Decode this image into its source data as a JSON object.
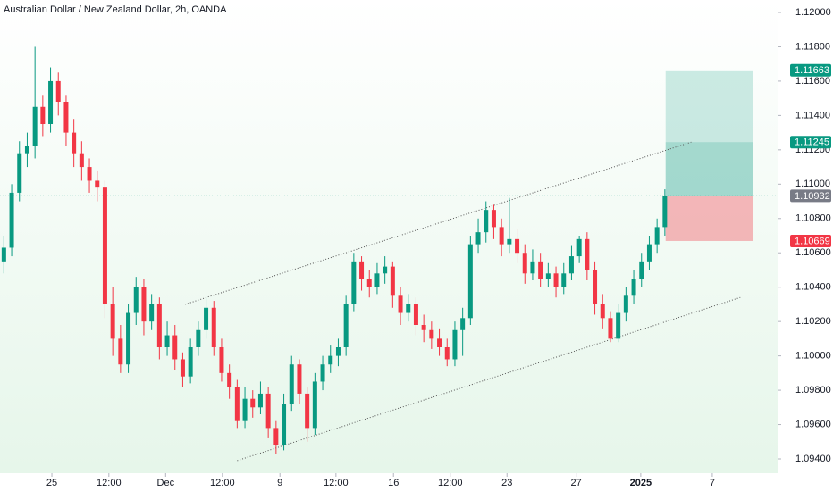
{
  "chart_data": {
    "type": "candlestick",
    "title": "Australian Dollar / New Zealand Dollar, 2h, OANDA",
    "up_color": "#089981",
    "down_color": "#f23645",
    "xlim": [
      0,
      100
    ],
    "ylim": [
      1.093168,
      1.120728
    ],
    "yticks": [
      {
        "value": 1.12,
        "label": "1.12000"
      },
      {
        "value": 1.118,
        "label": "1.11800"
      },
      {
        "value": 1.116,
        "label": "1.11600"
      },
      {
        "value": 1.114,
        "label": "1.11400"
      },
      {
        "value": 1.112,
        "label": "1.11200"
      },
      {
        "value": 1.11,
        "label": "1.11000"
      },
      {
        "value": 1.108,
        "label": "1.10800"
      },
      {
        "value": 1.106,
        "label": "1.10600"
      },
      {
        "value": 1.104,
        "label": "1.10400"
      },
      {
        "value": 1.102,
        "label": "1.10200"
      },
      {
        "value": 1.1,
        "label": "1.10000"
      },
      {
        "value": 1.098,
        "label": "1.09800"
      },
      {
        "value": 1.096,
        "label": "1.09600"
      },
      {
        "value": 1.094,
        "label": "1.09400"
      }
    ],
    "xticks": [
      {
        "value": 6.67,
        "label": "25"
      },
      {
        "value": 14.0,
        "label": "12:00"
      },
      {
        "value": 21.3,
        "label": "Dec"
      },
      {
        "value": 28.6,
        "label": "12:00"
      },
      {
        "value": 36.0,
        "label": "9"
      },
      {
        "value": 43.2,
        "label": "12:00"
      },
      {
        "value": 50.6,
        "label": "16"
      },
      {
        "value": 57.9,
        "label": "12:00"
      },
      {
        "value": 65.2,
        "label": "23"
      },
      {
        "value": 74.1,
        "label": "27"
      },
      {
        "value": 82.4,
        "label": "2025"
      },
      {
        "value": 91.6,
        "label": "7"
      }
    ],
    "ohlc": [
      [
        1.1055,
        1.107,
        1.1048,
        1.1063
      ],
      [
        1.1063,
        1.11,
        1.1058,
        1.1095
      ],
      [
        1.1095,
        1.1125,
        1.109,
        1.1118
      ],
      [
        1.1118,
        1.113,
        1.111,
        1.1122
      ],
      [
        1.1122,
        1.118,
        1.1115,
        1.1145
      ],
      [
        1.1145,
        1.1152,
        1.1128,
        1.1135
      ],
      [
        1.1135,
        1.1168,
        1.113,
        1.116
      ],
      [
        1.116,
        1.1165,
        1.114,
        1.1148
      ],
      [
        1.1148,
        1.1152,
        1.1122,
        1.113
      ],
      [
        1.113,
        1.1138,
        1.111,
        1.1118
      ],
      [
        1.1118,
        1.1125,
        1.1102,
        1.111
      ],
      [
        1.111,
        1.1115,
        1.1095,
        1.1102
      ],
      [
        1.1102,
        1.1108,
        1.109,
        1.1098
      ],
      [
        1.1098,
        1.1102,
        1.1022,
        1.103
      ],
      [
        1.103,
        1.104,
        1.1,
        1.101
      ],
      [
        1.101,
        1.1018,
        1.099,
        1.0995
      ],
      [
        1.0995,
        1.103,
        1.099,
        1.1025
      ],
      [
        1.1025,
        1.1046,
        1.1018,
        1.104
      ],
      [
        1.104,
        1.1045,
        1.1012,
        1.102
      ],
      [
        1.102,
        1.1036,
        1.1015,
        1.103
      ],
      [
        1.103,
        1.1034,
        1.0998,
        1.1005
      ],
      [
        1.1005,
        1.102,
        1.1,
        1.1012
      ],
      [
        1.1012,
        1.1018,
        1.0992,
        1.0998
      ],
      [
        1.0998,
        1.1002,
        1.0982,
        1.0988
      ],
      [
        1.0988,
        1.101,
        1.0984,
        1.1005
      ],
      [
        1.1005,
        1.102,
        1.1,
        1.1015
      ],
      [
        1.1015,
        1.1034,
        1.101,
        1.1028
      ],
      [
        1.1028,
        1.1032,
        1.1,
        1.1005
      ],
      [
        1.1005,
        1.101,
        1.0985,
        1.099
      ],
      [
        1.099,
        1.0995,
        1.0975,
        1.0982
      ],
      [
        1.0982,
        1.0986,
        1.0958,
        1.0962
      ],
      [
        1.0962,
        1.0982,
        1.0958,
        1.0975
      ],
      [
        1.0975,
        1.098,
        1.0964,
        1.097
      ],
      [
        1.097,
        1.0985,
        1.0966,
        1.0978
      ],
      [
        1.0978,
        1.0982,
        1.0952,
        1.0958
      ],
      [
        1.0958,
        1.0962,
        1.0943,
        1.0948
      ],
      [
        1.0948,
        1.0978,
        1.0945,
        1.0972
      ],
      [
        1.0972,
        1.1,
        1.0968,
        1.0995
      ],
      [
        1.0995,
        1.0998,
        1.0972,
        1.0978
      ],
      [
        1.0978,
        1.0982,
        1.095,
        1.0958
      ],
      [
        1.0958,
        1.099,
        1.0954,
        1.0985
      ],
      [
        1.0985,
        1.1,
        1.098,
        1.0995
      ],
      [
        1.0995,
        1.1006,
        1.099,
        1.1
      ],
      [
        1.1,
        1.101,
        1.0994,
        1.1005
      ],
      [
        1.1005,
        1.1035,
        1.1,
        1.103
      ],
      [
        1.103,
        1.106,
        1.1026,
        1.1055
      ],
      [
        1.1055,
        1.1058,
        1.1038,
        1.1045
      ],
      [
        1.1045,
        1.105,
        1.1034,
        1.104
      ],
      [
        1.104,
        1.1054,
        1.1036,
        1.1048
      ],
      [
        1.1048,
        1.1058,
        1.1042,
        1.1052
      ],
      [
        1.1052,
        1.1055,
        1.1028,
        1.1035
      ],
      [
        1.1035,
        1.104,
        1.1018,
        1.1025
      ],
      [
        1.1025,
        1.1036,
        1.102,
        1.103
      ],
      [
        1.103,
        1.1034,
        1.1012,
        1.1018
      ],
      [
        1.1018,
        1.1024,
        1.1008,
        1.1015
      ],
      [
        1.1015,
        1.102,
        1.1004,
        1.101
      ],
      [
        1.101,
        1.1016,
        1.1,
        1.1005
      ],
      [
        1.1005,
        1.101,
        1.0994,
        1.0998
      ],
      [
        1.0998,
        1.102,
        1.0994,
        1.1015
      ],
      [
        1.1015,
        1.1028,
        1.1,
        1.1022
      ],
      [
        1.1022,
        1.107,
        1.1018,
        1.1065
      ],
      [
        1.1065,
        1.108,
        1.106,
        1.1072
      ],
      [
        1.1072,
        1.109,
        1.1066,
        1.1085
      ],
      [
        1.1085,
        1.1088,
        1.1068,
        1.1075
      ],
      [
        1.1075,
        1.108,
        1.1058,
        1.1065
      ],
      [
        1.1065,
        1.1092,
        1.106,
        1.1068
      ],
      [
        1.1068,
        1.1074,
        1.1054,
        1.106
      ],
      [
        1.106,
        1.1065,
        1.1042,
        1.1048
      ],
      [
        1.1048,
        1.1062,
        1.1044,
        1.1055
      ],
      [
        1.1055,
        1.106,
        1.104,
        1.1045
      ],
      [
        1.1045,
        1.1054,
        1.104,
        1.1048
      ],
      [
        1.1048,
        1.1052,
        1.1034,
        1.104
      ],
      [
        1.104,
        1.1054,
        1.1036,
        1.1048
      ],
      [
        1.1048,
        1.1064,
        1.1044,
        1.1058
      ],
      [
        1.1058,
        1.107,
        1.1054,
        1.1068
      ],
      [
        1.1068,
        1.1072,
        1.1044,
        1.105
      ],
      [
        1.105,
        1.1055,
        1.1024,
        1.103
      ],
      [
        1.103,
        1.1036,
        1.1016,
        1.1022
      ],
      [
        1.1022,
        1.1026,
        1.1008,
        1.101
      ],
      [
        1.101,
        1.103,
        1.1008,
        1.1025
      ],
      [
        1.1025,
        1.104,
        1.102,
        1.1035
      ],
      [
        1.1035,
        1.105,
        1.103,
        1.1045
      ],
      [
        1.1045,
        1.106,
        1.104,
        1.1055
      ],
      [
        1.1055,
        1.107,
        1.105,
        1.1065
      ],
      [
        1.1065,
        1.108,
        1.106,
        1.1075
      ],
      [
        1.1075,
        1.1097,
        1.107,
        1.1093
      ]
    ],
    "channel": [
      {
        "x": [
          23.8,
          88.9
        ],
        "y": [
          1.103,
          1.11245
        ]
      },
      {
        "x": [
          30.5,
          95.2
        ],
        "y": [
          1.0939,
          1.1034
        ]
      }
    ],
    "position": {
      "x": [
        85.6,
        96.8
      ],
      "target": 1.11663,
      "fill_level": 1.11245,
      "entry": 1.10932,
      "stop": 1.10669
    },
    "last_price": 1.10932,
    "last_price_color": "#787b86"
  }
}
